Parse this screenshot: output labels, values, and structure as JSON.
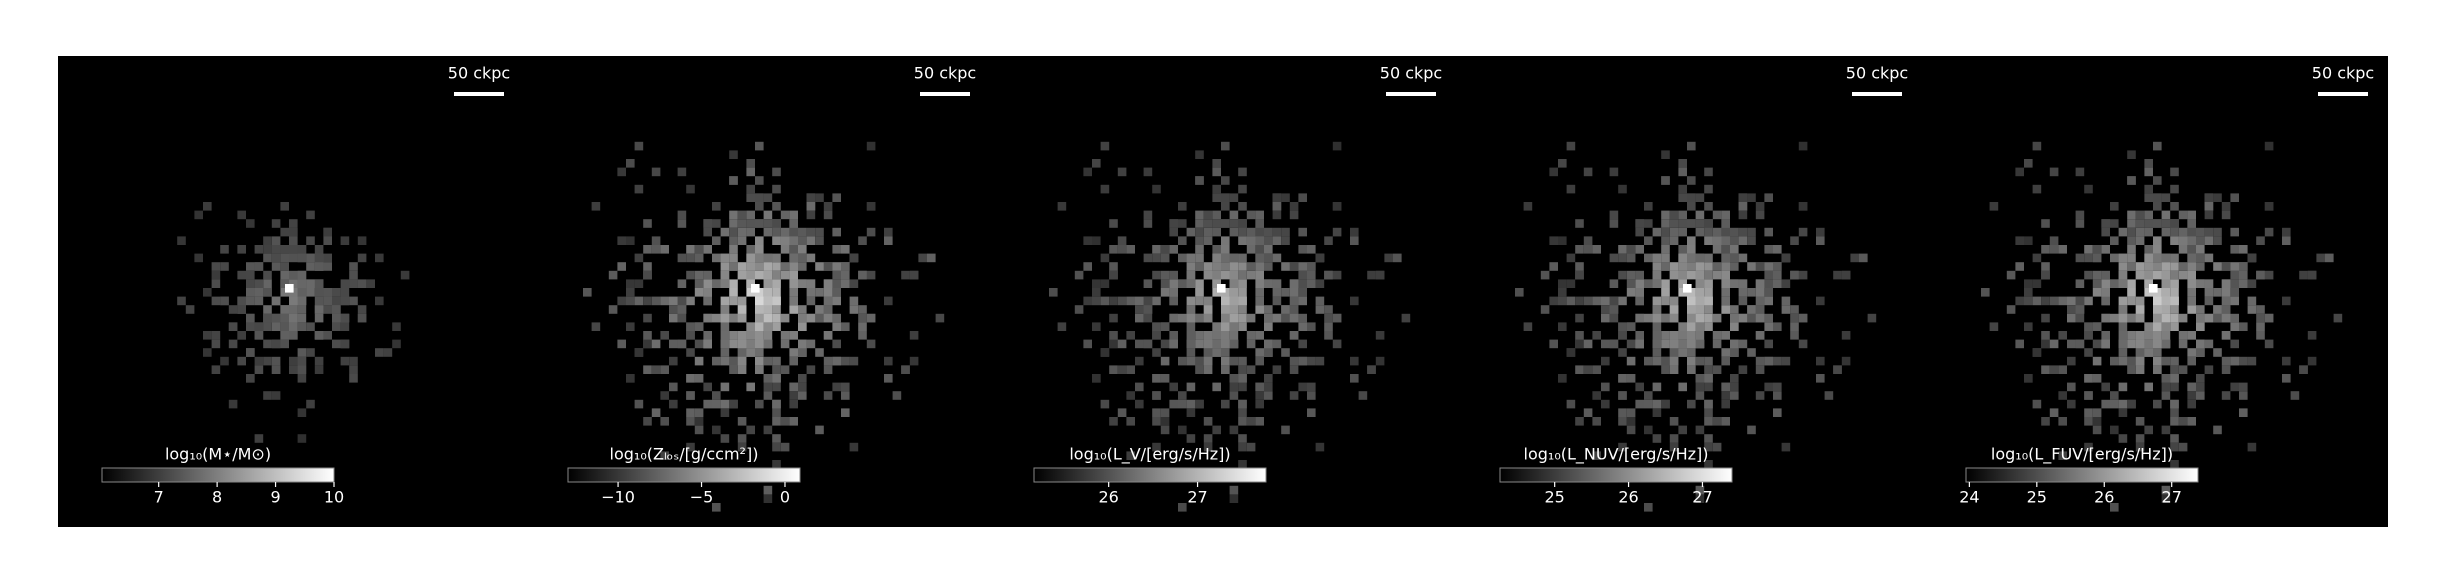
{
  "chart_data": [
    {
      "type": "image",
      "scale_bar_label": "50 ckpc",
      "colorbar_label": "log₁₀(M⋆/M⊙)",
      "xlim": [
        6.03,
        10.0
      ],
      "xticks": [
        7,
        8,
        9,
        10
      ]
    },
    {
      "type": "image",
      "scale_bar_label": "50 ckpc",
      "colorbar_label": "log₁₀(Zₗₒₛ/[g/ccm²])",
      "xlim": [
        -13.0,
        0.9
      ],
      "xticks": [
        {
          "value": -10,
          "label": "−10"
        },
        {
          "value": -5,
          "label": "−5"
        },
        0
      ]
    },
    {
      "type": "image",
      "scale_bar_label": "50 ckpc",
      "colorbar_label": "log₁₀(L_V/[erg/s/Hz])",
      "xlim": [
        25.16,
        27.77
      ],
      "xticks": [
        26,
        27
      ]
    },
    {
      "type": "image",
      "scale_bar_label": "50 ckpc",
      "colorbar_label": "log₁₀(L_NUV/[erg/s/Hz])",
      "xlim": [
        24.26,
        27.4
      ],
      "xticks": [
        25,
        26,
        27
      ]
    },
    {
      "type": "image",
      "scale_bar_label": "50 ckpc",
      "colorbar_label": "log₁₀(L_FUV/[erg/s/Hz])",
      "xlim": [
        23.95,
        27.39
      ],
      "xticks": [
        24,
        25,
        26,
        27
      ]
    }
  ]
}
